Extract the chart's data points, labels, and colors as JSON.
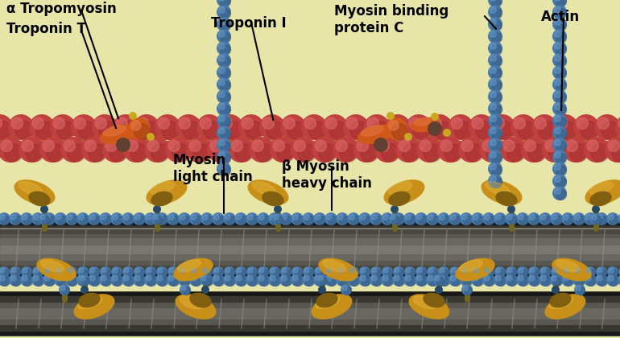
{
  "bg_color": "#e8e5a8",
  "labels": {
    "alpha_tropomyosin": "α Tropomyosin",
    "troponin_t": "Troponin T",
    "troponin_i": "Troponin I",
    "myosin_binding_protein_c": "Myosin binding\nprotein C",
    "actin": "Actin",
    "myosin_light_chain": "Myosin\nlight chain",
    "beta_myosin_heavy_chain": "β Myosin\nheavy chain"
  },
  "colors": {
    "actin_bead_main": "#c04040",
    "actin_bead_hi": "#e07070",
    "actin_bead_shadow": "#902020",
    "tropomyosin": "#a06020",
    "troponin_orange": "#d05818",
    "troponin_orange_hi": "#e88050",
    "troponin_dark": "#803018",
    "troponin_small_dark": "#604030",
    "yellow_bead": "#c8a820",
    "blue_bead": "#4878a8",
    "blue_bead_hi": "#6898c8",
    "blue_bead_shadow": "#284868",
    "myosin_head_gold": "#c89018",
    "myosin_head_hi": "#e8b840",
    "myosin_head_shadow": "#806010",
    "myosin_stalk_dark": "#484828",
    "filament_dark": "#383830",
    "filament_mid": "#585850",
    "filament_light": "#787870",
    "filament_highlight": "#989890",
    "text_color": "#000000"
  },
  "figsize": [
    7.7,
    4.2
  ],
  "dpi": 100
}
